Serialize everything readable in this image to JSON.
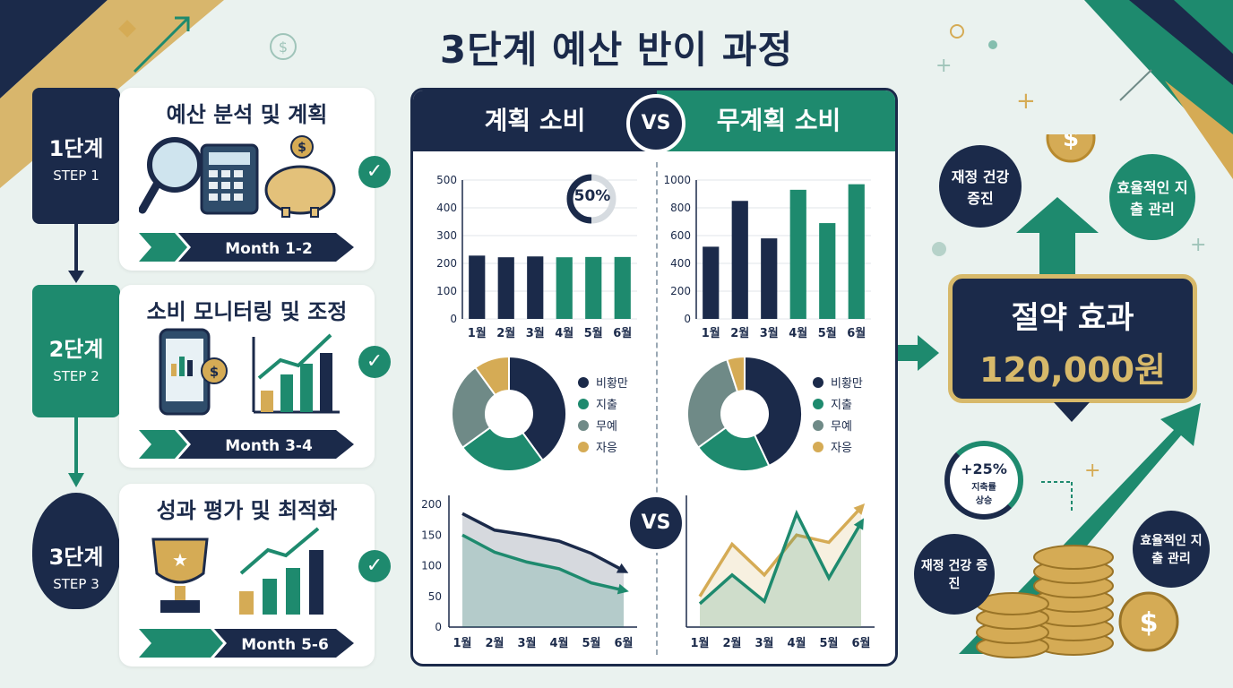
{
  "title": "3단계 예산 반이 과정",
  "colors": {
    "navy": "#1b2a4a",
    "green": "#1e8a6e",
    "gray": "#6f8a87",
    "gold": "#d5ab55",
    "bg": "#eaf2ef"
  },
  "steps": [
    {
      "badge": "1단계",
      "sub": "STEP 1",
      "title": "예산 분석 및 계획",
      "month": "Month 1-2",
      "icons": [
        "magnifier-icon",
        "calculator-icon",
        "piggy-bank-icon"
      ]
    },
    {
      "badge": "2단계",
      "sub": "STEP 2",
      "title": "소비 모니터링 및 조정",
      "month": "Month 3-4",
      "icons": [
        "phone-chart-icon",
        "growth-chart-icon"
      ]
    },
    {
      "badge": "3단계",
      "sub": "STEP 3",
      "title": "성과 평가 및 최적화",
      "month": "Month 5-6",
      "icons": [
        "trophy-icon",
        "growth-chart-icon"
      ]
    }
  ],
  "comparison": {
    "left_header": "계획 소비",
    "right_header": "무계획 소비",
    "vs": "VS",
    "donut_percent": "50%"
  },
  "chart_data": [
    {
      "type": "bar",
      "panel": "계획 소비",
      "categories": [
        "1월",
        "2월",
        "3월",
        "4월",
        "5월",
        "6월"
      ],
      "values": [
        228,
        222,
        225,
        222,
        223,
        223
      ],
      "ylim": [
        0,
        500
      ],
      "yticks": [
        0,
        100,
        200,
        300,
        400,
        500
      ]
    },
    {
      "type": "bar",
      "panel": "무계획 소비",
      "categories": [
        "1월",
        "2월",
        "3월",
        "4월",
        "5월",
        "6월"
      ],
      "values": [
        520,
        850,
        580,
        930,
        690,
        970
      ],
      "ylim": [
        0,
        1000
      ],
      "yticks": [
        0,
        200,
        400,
        600,
        800,
        1000
      ]
    },
    {
      "type": "pie",
      "panel": "계획 소비",
      "labels": [
        "비황만",
        "지출",
        "무예",
        "자응"
      ],
      "values": [
        40,
        25,
        25,
        10
      ]
    },
    {
      "type": "pie",
      "panel": "무계획 소비",
      "labels": [
        "비황만",
        "지출",
        "무예",
        "자응"
      ],
      "values": [
        43,
        22,
        30,
        5
      ]
    },
    {
      "type": "area",
      "panel": "계획 소비",
      "categories": [
        "1월",
        "2월",
        "3월",
        "4월",
        "5월",
        "6월"
      ],
      "ylim": [
        0,
        200
      ],
      "yticks": [
        0,
        50,
        100,
        150,
        200
      ],
      "series": [
        {
          "values": [
            185,
            158,
            150,
            140,
            120,
            92
          ]
        },
        {
          "values": [
            150,
            122,
            106,
            95,
            72,
            60
          ]
        }
      ]
    },
    {
      "type": "area",
      "panel": "무계획 소비",
      "categories": [
        "1월",
        "2월",
        "3월",
        "4월",
        "5월",
        "6월"
      ],
      "ylim": [
        0,
        200
      ],
      "series": [
        {
          "values": [
            50,
            135,
            85,
            150,
            138,
            195
          ]
        },
        {
          "values": [
            38,
            85,
            42,
            185,
            80,
            170
          ]
        }
      ]
    }
  ],
  "savings": {
    "label": "절약 효과",
    "amount": "120,000원"
  },
  "bubbles": {
    "health_top": "재정 건강 증진",
    "efficient_top": "효율적인 지출 관리",
    "health_bottom": "재정 건강 증진",
    "efficient_bottom": "효율적인 지출 관리"
  },
  "savings_rate": {
    "value": "+25%",
    "label": "지축률 상승"
  }
}
